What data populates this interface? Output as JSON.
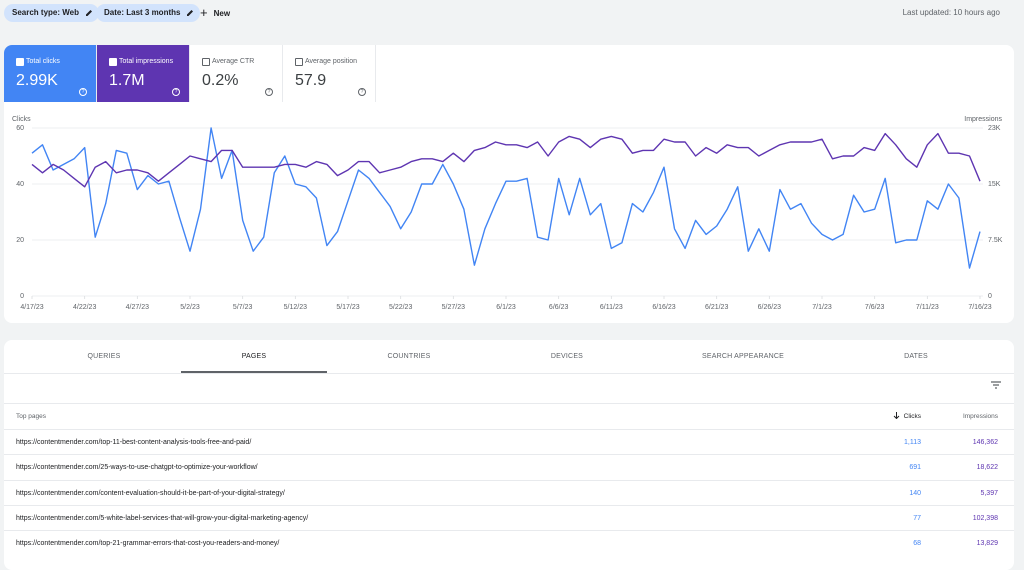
{
  "toolbar": {
    "search_type": "Search type: Web",
    "date": "Date: Last 3 months",
    "new": "New",
    "last_updated": "Last updated: 10 hours ago"
  },
  "metrics": [
    {
      "label": "Total clicks",
      "value": "2.99K"
    },
    {
      "label": "Total impressions",
      "value": "1.7M"
    },
    {
      "label": "Average CTR",
      "value": "0.2%"
    },
    {
      "label": "Average position",
      "value": "57.9"
    }
  ],
  "chart_data": {
    "type": "line",
    "categories": [
      "4/17/23",
      null,
      null,
      null,
      null,
      "4/22/23",
      null,
      null,
      null,
      null,
      "4/27/23",
      null,
      null,
      null,
      null,
      "5/2/23",
      null,
      null,
      null,
      null,
      "5/7/23",
      null,
      null,
      null,
      null,
      "5/12/23",
      null,
      null,
      null,
      null,
      "5/17/23",
      null,
      null,
      null,
      null,
      "5/22/23",
      null,
      null,
      null,
      null,
      "5/27/23",
      null,
      null,
      null,
      null,
      "6/1/23",
      null,
      null,
      null,
      null,
      "6/6/23",
      null,
      null,
      null,
      null,
      "6/11/23",
      null,
      null,
      null,
      null,
      "6/16/23",
      null,
      null,
      null,
      null,
      "6/21/23",
      null,
      null,
      null,
      null,
      "6/26/23",
      null,
      null,
      null,
      null,
      "7/1/23",
      null,
      null,
      null,
      null,
      "7/6/23",
      null,
      null,
      null,
      null,
      "7/11/23",
      null,
      null,
      null,
      null,
      "7/16/23"
    ],
    "series": [
      {
        "name": "Clicks",
        "color": "#4285f4",
        "values": [
          51,
          54,
          45,
          47,
          49,
          53,
          21,
          33,
          52,
          51,
          38,
          43,
          40,
          41,
          28,
          16,
          31,
          60,
          42,
          52,
          27,
          16,
          21,
          44,
          50,
          40,
          39,
          35,
          18,
          23,
          34,
          45,
          42,
          37,
          32,
          24,
          30,
          40,
          40,
          47,
          40,
          31,
          11,
          24,
          33,
          41,
          41,
          42,
          21,
          20,
          42,
          29,
          42,
          29,
          33,
          17,
          19,
          33,
          30,
          37,
          46,
          24,
          17,
          27,
          22,
          25,
          31,
          39,
          16,
          24,
          16,
          38,
          31,
          33,
          26,
          22,
          20,
          22,
          36,
          30,
          31,
          42,
          19,
          20,
          20,
          34,
          31,
          40,
          35,
          10,
          23
        ]
      },
      {
        "name": "Impressions",
        "color": "#5e35b1",
        "axis": "y2",
        "values": [
          17625,
          16500,
          17625,
          16875,
          15750,
          14625,
          17250,
          18000,
          16500,
          16875,
          16875,
          16500,
          15375,
          16500,
          17625,
          18750,
          18375,
          18000,
          19500,
          19500,
          17250,
          17250,
          17250,
          17250,
          17625,
          17625,
          17250,
          18000,
          17625,
          16125,
          16875,
          18000,
          18000,
          16500,
          16875,
          17250,
          18000,
          18375,
          18375,
          18000,
          19125,
          18000,
          19500,
          19875,
          20625,
          20250,
          20250,
          19875,
          20625,
          18750,
          20625,
          21375,
          21000,
          19875,
          21000,
          21375,
          21000,
          19125,
          19500,
          19500,
          21000,
          20625,
          20625,
          18750,
          19875,
          19125,
          20250,
          19875,
          19875,
          18750,
          19500,
          20250,
          20625,
          20625,
          20625,
          21000,
          18375,
          18750,
          18750,
          19875,
          19500,
          21750,
          20250,
          18375,
          17250,
          20250,
          21750,
          19125,
          19125,
          18750,
          15375
        ]
      }
    ],
    "ylim": [
      0,
      60
    ],
    "yticks": [
      0,
      20,
      40,
      60
    ],
    "y2lim": [
      0,
      22500
    ],
    "y2ticks": [
      0,
      {
        "value": 7500,
        "label": "7.5K"
      },
      {
        "value": 15000,
        "label": "15K"
      },
      {
        "value": 22500,
        "label": "23K"
      }
    ],
    "grid": true
  },
  "tabs": [
    "QUERIES",
    "PAGES",
    "COUNTRIES",
    "DEVICES",
    "SEARCH APPEARANCE",
    "DATES"
  ],
  "table": {
    "columns": [
      "Top pages",
      "Clicks",
      "Impressions"
    ],
    "rows": [
      [
        "https://contentmender.com/top-11-best-content-analysis-tools-free-and-paid/",
        "1,113",
        "146,362"
      ],
      [
        "https://contentmender.com/25-ways-to-use-chatgpt-to-optimize-your-workflow/",
        "691",
        "18,622"
      ],
      [
        "https://contentmender.com/content-evaluation-should-it-be-part-of-your-digital-strategy/",
        "140",
        "5,397"
      ],
      [
        "https://contentmender.com/5-white-label-services-that-will-grow-your-digital-marketing-agency/",
        "77",
        "102,398"
      ],
      [
        "https://contentmender.com/top-21-grammar-errors-that-cost-you-readers-and-money/",
        "68",
        "13,829"
      ]
    ]
  }
}
